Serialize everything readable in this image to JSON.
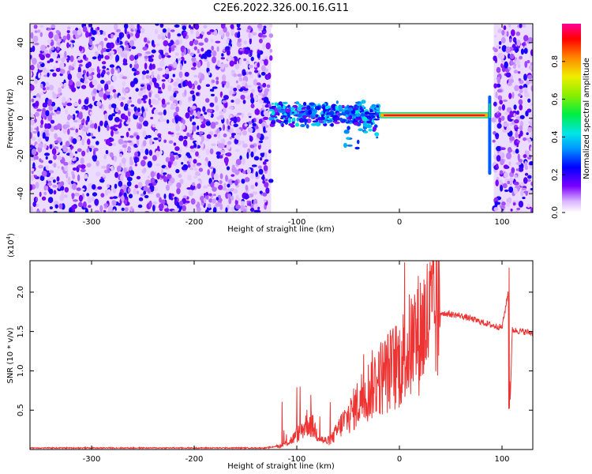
{
  "title": "C2E6.2022.326.00.16.G11",
  "chart_data": [
    {
      "type": "heatmap",
      "xlabel": "Height of straight line (km)",
      "ylabel": "Frequency (Hz)",
      "xlim": [
        -360,
        130
      ],
      "ylim": [
        -50,
        50
      ],
      "xticks": [
        -300,
        -200,
        -100,
        0,
        100
      ],
      "yticks": [
        -40,
        -20,
        0,
        20,
        40
      ],
      "colorbar": {
        "label": "Normalized spectral amplitude",
        "range": [
          0.0,
          1.0
        ],
        "ticks": [
          0.0,
          0.2,
          0.4,
          0.6,
          0.8
        ]
      },
      "features": [
        {
          "region": "broadband noise",
          "x_range": [
            -360,
            -125
          ],
          "freq_range": [
            -50,
            50
          ],
          "amplitude": 0.15
        },
        {
          "region": "transition scatter",
          "x_range": [
            -125,
            -20
          ],
          "freq_range": [
            -20,
            10
          ],
          "amplitude": 0.3
        },
        {
          "region": "carrier line",
          "x_range": [
            -20,
            88
          ],
          "freq_center": 1.5,
          "amplitude": 0.95
        },
        {
          "region": "vertical spike",
          "x": 88,
          "freq_range": [
            -30,
            12
          ],
          "amplitude": 0.3
        },
        {
          "region": "broadband noise",
          "x_range": [
            92,
            130
          ],
          "freq_range": [
            -50,
            50
          ],
          "amplitude": 0.15
        }
      ],
      "grid": false,
      "legend": "none"
    },
    {
      "type": "line",
      "xlabel": "Height of straight line (km)",
      "ylabel": "SNR (10 * v/v)",
      "y_multiplier": "(x10",
      "y_multiplier_exp": "4",
      "y_multiplier_close": ")",
      "xlim": [
        -360,
        130
      ],
      "ylim": [
        0,
        2.4
      ],
      "xticks": [
        -300,
        -200,
        -100,
        0,
        100
      ],
      "yticks": [
        0.5,
        1.0,
        1.5,
        2.0
      ],
      "color": "#ee3333",
      "series": [
        {
          "x": [
            -360,
            -300,
            -200,
            -130,
            -115,
            -105,
            -95,
            -90,
            -85,
            -80,
            -75,
            -70,
            -65,
            -60,
            -55,
            -50,
            -45,
            -40,
            -35,
            -30,
            -25,
            -20,
            -15,
            -10,
            -5,
            0,
            5,
            10,
            15,
            20,
            25,
            30,
            35,
            40,
            50,
            60,
            70,
            80,
            90,
            100,
            106,
            108,
            110,
            120,
            130
          ],
          "y": [
            0.02,
            0.02,
            0.02,
            0.02,
            0.05,
            0.12,
            0.25,
            0.35,
            0.3,
            0.2,
            0.12,
            0.1,
            0.15,
            0.25,
            0.35,
            0.4,
            0.5,
            0.6,
            0.7,
            0.75,
            0.85,
            0.9,
            0.95,
            1.0,
            1.05,
            1.1,
            1.2,
            1.3,
            1.4,
            1.5,
            1.6,
            1.68,
            1.72,
            1.74,
            1.72,
            1.7,
            1.66,
            1.62,
            1.58,
            1.55,
            2.0,
            0.6,
            1.52,
            1.5,
            1.48
          ]
        }
      ],
      "grid": false,
      "legend": "none"
    }
  ]
}
